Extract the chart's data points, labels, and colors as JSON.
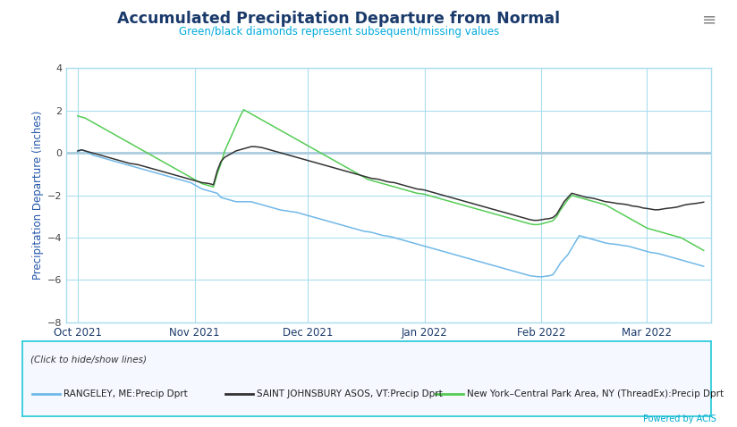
{
  "title": "Accumulated Precipitation Departure from Normal",
  "subtitle": "Green/black diamonds represent subsequent/missing values",
  "ylabel": "Precipitation Departure (inches)",
  "background_color": "#ffffff",
  "plot_bg_color": "#ffffff",
  "title_color": "#1a3a6b",
  "subtitle_color": "#00aadd",
  "grid_color": "#aaddee",
  "zero_line_color": "#aaccdd",
  "ylim": [
    -8,
    4
  ],
  "yticks": [
    -8,
    -6,
    -4,
    -2,
    0,
    2,
    4
  ],
  "legend_label_blue": "RANGELEY, ME:Precip Dprt",
  "legend_label_black": "SAINT JOHNSBURY ASOS, VT:Precip Dprt",
  "legend_label_green": "New York–Central Park Area, NY (ThreadEx):Precip Dprt",
  "legend_italic_text": "(Click to hide/show lines)",
  "powered_by": "Powered by ACIS",
  "line_blue_color": "#70b8e8",
  "line_black_color": "#333333",
  "line_green_color": "#55cc55",
  "rangeley_vals": [
    0.05,
    0.15,
    0.1,
    0.0,
    -0.1,
    -0.15,
    -0.2,
    -0.25,
    -0.3,
    -0.35,
    -0.4,
    -0.45,
    -0.5,
    -0.55,
    -0.6,
    -0.65,
    -0.7,
    -0.75,
    -0.8,
    -0.85,
    -0.9,
    -0.95,
    -1.0,
    -1.05,
    -1.1,
    -1.15,
    -1.2,
    -1.25,
    -1.3,
    -1.35,
    -1.4,
    -1.5,
    -1.6,
    -1.7,
    -1.75,
    -1.8,
    -1.85,
    -1.9,
    -2.1,
    -2.15,
    -2.2,
    -2.25,
    -2.3,
    -2.3,
    -2.3,
    -2.3,
    -2.3,
    -2.35,
    -2.4,
    -2.45,
    -2.5,
    -2.55,
    -2.6,
    -2.65,
    -2.7,
    -2.72,
    -2.75,
    -2.78,
    -2.8,
    -2.85,
    -2.9,
    -2.95,
    -3.0,
    -3.05,
    -3.1,
    -3.15,
    -3.2,
    -3.25,
    -3.3,
    -3.35,
    -3.4,
    -3.45,
    -3.5,
    -3.55,
    -3.6,
    -3.65,
    -3.7,
    -3.72,
    -3.75,
    -3.8,
    -3.85,
    -3.9,
    -3.92,
    -3.95,
    -4.0,
    -4.05,
    -4.1,
    -4.15,
    -4.2,
    -4.25,
    -4.3,
    -4.35,
    -4.4,
    -4.45,
    -4.5,
    -4.55,
    -4.6,
    -4.65,
    -4.7,
    -4.75,
    -4.8,
    -4.85,
    -4.9,
    -4.95,
    -5.0,
    -5.05,
    -5.1,
    -5.15,
    -5.2,
    -5.25,
    -5.3,
    -5.35,
    -5.4,
    -5.45,
    -5.5,
    -5.55,
    -5.6,
    -5.65,
    -5.7,
    -5.75,
    -5.8,
    -5.82,
    -5.84,
    -5.85,
    -5.82,
    -5.8,
    -5.75,
    -5.5,
    -5.2,
    -5.0,
    -4.8,
    -4.5,
    -4.2,
    -3.9,
    -3.95,
    -4.0,
    -4.05,
    -4.1,
    -4.15,
    -4.2,
    -4.25,
    -4.28,
    -4.3,
    -4.32,
    -4.35,
    -4.38,
    -4.4,
    -4.45,
    -4.5,
    -4.55,
    -4.6,
    -4.65,
    -4.7,
    -4.72,
    -4.75,
    -4.8,
    -4.85,
    -4.9,
    -4.95,
    -5.0,
    -5.05,
    -5.1,
    -5.15,
    -5.2,
    -5.25,
    -5.3,
    -5.35,
    -5.4,
    -5.45,
    -5.5,
    -5.5
  ],
  "sj_vals": [
    0.1,
    0.15,
    0.1,
    0.05,
    0.0,
    -0.05,
    -0.1,
    -0.15,
    -0.2,
    -0.25,
    -0.3,
    -0.35,
    -0.4,
    -0.45,
    -0.5,
    -0.52,
    -0.55,
    -0.6,
    -0.65,
    -0.7,
    -0.75,
    -0.8,
    -0.85,
    -0.9,
    -0.95,
    -1.0,
    -1.05,
    -1.1,
    -1.15,
    -1.2,
    -1.25,
    -1.3,
    -1.35,
    -1.4,
    -1.42,
    -1.45,
    -1.5,
    -0.85,
    -0.4,
    -0.2,
    -0.1,
    0.0,
    0.1,
    0.15,
    0.2,
    0.25,
    0.3,
    0.3,
    0.28,
    0.25,
    0.2,
    0.15,
    0.1,
    0.05,
    0.0,
    -0.05,
    -0.1,
    -0.15,
    -0.2,
    -0.25,
    -0.3,
    -0.35,
    -0.4,
    -0.45,
    -0.5,
    -0.55,
    -0.6,
    -0.65,
    -0.7,
    -0.75,
    -0.8,
    -0.85,
    -0.9,
    -0.95,
    -1.0,
    -1.05,
    -1.1,
    -1.15,
    -1.2,
    -1.22,
    -1.25,
    -1.3,
    -1.35,
    -1.38,
    -1.4,
    -1.45,
    -1.5,
    -1.55,
    -1.6,
    -1.65,
    -1.7,
    -1.72,
    -1.75,
    -1.8,
    -1.85,
    -1.9,
    -1.95,
    -2.0,
    -2.05,
    -2.1,
    -2.15,
    -2.2,
    -2.25,
    -2.3,
    -2.35,
    -2.4,
    -2.45,
    -2.5,
    -2.55,
    -2.6,
    -2.65,
    -2.7,
    -2.75,
    -2.8,
    -2.85,
    -2.9,
    -2.95,
    -3.0,
    -3.05,
    -3.1,
    -3.15,
    -3.18,
    -3.18,
    -3.15,
    -3.12,
    -3.1,
    -3.05,
    -2.9,
    -2.6,
    -2.3,
    -2.1,
    -1.9,
    -1.95,
    -2.0,
    -2.05,
    -2.1,
    -2.12,
    -2.15,
    -2.2,
    -2.25,
    -2.3,
    -2.32,
    -2.35,
    -2.38,
    -2.4,
    -2.42,
    -2.45,
    -2.5,
    -2.52,
    -2.55,
    -2.6,
    -2.62,
    -2.65,
    -2.68,
    -2.68,
    -2.65,
    -2.62,
    -2.6,
    -2.58,
    -2.55,
    -2.5,
    -2.45,
    -2.42,
    -2.4,
    -2.38,
    -2.35,
    -2.32,
    -2.3,
    -2.28,
    -2.25,
    -2.2
  ],
  "ny_vals": [
    1.75,
    1.7,
    1.65,
    1.55,
    1.45,
    1.35,
    1.25,
    1.15,
    1.05,
    0.95,
    0.85,
    0.75,
    0.65,
    0.55,
    0.45,
    0.35,
    0.25,
    0.15,
    0.05,
    -0.05,
    -0.15,
    -0.25,
    -0.35,
    -0.45,
    -0.55,
    -0.65,
    -0.75,
    -0.85,
    -0.95,
    -1.05,
    -1.15,
    -1.25,
    -1.35,
    -1.45,
    -1.5,
    -1.55,
    -1.6,
    -1.0,
    -0.5,
    0.1,
    0.5,
    0.9,
    1.3,
    1.7,
    2.05,
    1.95,
    1.85,
    1.75,
    1.65,
    1.55,
    1.45,
    1.35,
    1.25,
    1.15,
    1.05,
    0.95,
    0.85,
    0.75,
    0.65,
    0.55,
    0.45,
    0.35,
    0.25,
    0.15,
    0.05,
    -0.05,
    -0.15,
    -0.25,
    -0.35,
    -0.45,
    -0.55,
    -0.65,
    -0.75,
    -0.85,
    -0.95,
    -1.05,
    -1.15,
    -1.25,
    -1.3,
    -1.35,
    -1.4,
    -1.45,
    -1.5,
    -1.55,
    -1.6,
    -1.65,
    -1.7,
    -1.75,
    -1.8,
    -1.85,
    -1.9,
    -1.92,
    -1.95,
    -2.0,
    -2.05,
    -2.1,
    -2.15,
    -2.2,
    -2.25,
    -2.3,
    -2.35,
    -2.4,
    -2.45,
    -2.5,
    -2.55,
    -2.6,
    -2.65,
    -2.7,
    -2.75,
    -2.8,
    -2.85,
    -2.9,
    -2.95,
    -3.0,
    -3.05,
    -3.1,
    -3.15,
    -3.2,
    -3.25,
    -3.3,
    -3.35,
    -3.38,
    -3.38,
    -3.35,
    -3.3,
    -3.25,
    -3.2,
    -3.0,
    -2.7,
    -2.45,
    -2.2,
    -2.0,
    -2.05,
    -2.1,
    -2.15,
    -2.2,
    -2.25,
    -2.3,
    -2.35,
    -2.4,
    -2.45,
    -2.55,
    -2.65,
    -2.75,
    -2.85,
    -2.95,
    -3.05,
    -3.15,
    -3.25,
    -3.35,
    -3.45,
    -3.55,
    -3.6,
    -3.65,
    -3.7,
    -3.75,
    -3.8,
    -3.85,
    -3.9,
    -3.95,
    -4.0,
    -4.1,
    -4.2,
    -4.3,
    -4.4,
    -4.5,
    -4.6,
    -4.65,
    -4.7,
    -4.75,
    -4.8
  ]
}
